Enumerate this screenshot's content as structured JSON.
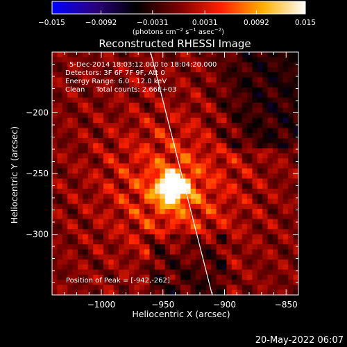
{
  "chart_data": {
    "type": "heatmap",
    "title": "Reconstructed RHESSI Image",
    "xlabel": "Heliocentric X (arcsec)",
    "ylabel": "Heliocentric Y (arcsec)",
    "xlim": [
      -1040,
      -840
    ],
    "ylim": [
      -350,
      -150
    ],
    "xticks": [
      -1000,
      -950,
      -900,
      -850
    ],
    "xtick_labels": [
      "−1000",
      "−950",
      "−900",
      "−850"
    ],
    "yticks": [
      -200,
      -250,
      -300
    ],
    "ytick_labels": [
      "−200",
      "−250",
      "−300"
    ],
    "colorbar": {
      "min": -0.015,
      "max": 0.015,
      "ticks": [
        -0.015,
        -0.0092,
        -0.0031,
        0.0031,
        0.0092,
        0.015
      ],
      "tick_labels": [
        "−0.015",
        "−0.0092",
        "−0.0031",
        "0.0031",
        "0.0092",
        "0.015"
      ],
      "unit_parts": [
        "(photons cm",
        "−2",
        " s",
        "−1",
        " asec",
        "−2",
        ")"
      ],
      "colormap": [
        "#0000ff",
        "#2a0080",
        "#000000",
        "#7a0000",
        "#ff2000",
        "#ffb000",
        "#ffffff"
      ]
    },
    "info_lines": [
      "5-Dec-2014 18:03:12.000 to 18:04:20.000",
      "Detectors: 3F 6F 7F 9F, Att 0",
      "Energy Range: 6.0 - 12.0 keV",
      "Clean     Total counts: 2.66E+03"
    ],
    "peak": {
      "x": -942,
      "y": -262,
      "label": "Position of Peak = [-942,-262]"
    },
    "limb_line": [
      [
        -960,
        -150
      ],
      [
        -910,
        -350
      ]
    ],
    "footer_date": "20-May-2022 06:07"
  }
}
